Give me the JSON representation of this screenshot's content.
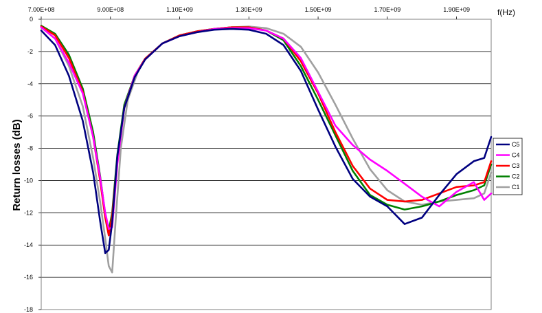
{
  "chart_data": {
    "type": "line",
    "title": "",
    "xlabel": "f(Hz)",
    "ylabel": "Return losses (dB)",
    "xlim": [
      700000000,
      2000000000
    ],
    "ylim": [
      -18,
      0
    ],
    "x_ticks": [
      700000000,
      900000000,
      1100000000,
      1300000000,
      1500000000,
      1700000000,
      1900000000
    ],
    "x_tick_labels": [
      "7.00E+08",
      "9.00E+08",
      "1.10E+09",
      "1.30E+09",
      "1.50E+09",
      "1.70E+09",
      "1.90E+09"
    ],
    "y_ticks": [
      0,
      -2,
      -4,
      -6,
      -8,
      -10,
      -12,
      -14,
      -16,
      -18
    ],
    "y_tick_labels": [
      "0",
      "-2",
      "-4",
      "-6",
      "-8",
      "-10",
      "-12",
      "-14",
      "-16",
      "-18"
    ],
    "x_axis_position": "top",
    "grid": "horizontal",
    "legend_position": "right",
    "series": [
      {
        "name": "C5",
        "color": "#000080",
        "points": [
          [
            700000000,
            -0.7
          ],
          [
            740000000,
            -1.6
          ],
          [
            780000000,
            -3.5
          ],
          [
            820000000,
            -6.3
          ],
          [
            850000000,
            -9.5
          ],
          [
            870000000,
            -12.5
          ],
          [
            885000000,
            -14.5
          ],
          [
            895000000,
            -14.3
          ],
          [
            905000000,
            -12.6
          ],
          [
            920000000,
            -8.5
          ],
          [
            940000000,
            -5.5
          ],
          [
            970000000,
            -3.6
          ],
          [
            1000000000,
            -2.5
          ],
          [
            1050000000,
            -1.5
          ],
          [
            1100000000,
            -1.05
          ],
          [
            1150000000,
            -0.8
          ],
          [
            1200000000,
            -0.65
          ],
          [
            1250000000,
            -0.6
          ],
          [
            1300000000,
            -0.65
          ],
          [
            1350000000,
            -0.9
          ],
          [
            1400000000,
            -1.6
          ],
          [
            1450000000,
            -3.2
          ],
          [
            1500000000,
            -5.6
          ],
          [
            1550000000,
            -7.9
          ],
          [
            1600000000,
            -9.9
          ],
          [
            1650000000,
            -11.0
          ],
          [
            1700000000,
            -11.6
          ],
          [
            1750000000,
            -12.7
          ],
          [
            1800000000,
            -12.3
          ],
          [
            1850000000,
            -10.9
          ],
          [
            1900000000,
            -9.6
          ],
          [
            1950000000,
            -8.8
          ],
          [
            1980000000,
            -8.6
          ],
          [
            2000000000,
            -7.3
          ]
        ]
      },
      {
        "name": "C4",
        "color": "#FF00FF",
        "points": [
          [
            700000000,
            -0.5
          ],
          [
            740000000,
            -1.2
          ],
          [
            780000000,
            -2.7
          ],
          [
            820000000,
            -4.6
          ],
          [
            850000000,
            -7.3
          ],
          [
            870000000,
            -9.8
          ],
          [
            885000000,
            -12.0
          ],
          [
            895000000,
            -13.0
          ],
          [
            905000000,
            -12.9
          ],
          [
            920000000,
            -9.0
          ],
          [
            940000000,
            -5.5
          ],
          [
            970000000,
            -3.5
          ],
          [
            1000000000,
            -2.5
          ],
          [
            1050000000,
            -1.5
          ],
          [
            1100000000,
            -1.05
          ],
          [
            1150000000,
            -0.8
          ],
          [
            1200000000,
            -0.6
          ],
          [
            1250000000,
            -0.55
          ],
          [
            1300000000,
            -0.55
          ],
          [
            1350000000,
            -0.7
          ],
          [
            1400000000,
            -1.2
          ],
          [
            1450000000,
            -2.4
          ],
          [
            1500000000,
            -4.5
          ],
          [
            1550000000,
            -6.6
          ],
          [
            1600000000,
            -7.8
          ],
          [
            1650000000,
            -8.7
          ],
          [
            1700000000,
            -9.4
          ],
          [
            1750000000,
            -10.2
          ],
          [
            1800000000,
            -11.0
          ],
          [
            1850000000,
            -11.6
          ],
          [
            1900000000,
            -10.7
          ],
          [
            1950000000,
            -10.1
          ],
          [
            1980000000,
            -11.2
          ],
          [
            2000000000,
            -10.8
          ]
        ]
      },
      {
        "name": "C3",
        "color": "#FF0000",
        "points": [
          [
            700000000,
            -0.45
          ],
          [
            740000000,
            -1.0
          ],
          [
            780000000,
            -2.4
          ],
          [
            820000000,
            -4.5
          ],
          [
            850000000,
            -7.3
          ],
          [
            870000000,
            -10.0
          ],
          [
            885000000,
            -12.3
          ],
          [
            895000000,
            -13.4
          ],
          [
            905000000,
            -12.2
          ],
          [
            920000000,
            -8.7
          ],
          [
            940000000,
            -5.5
          ],
          [
            970000000,
            -3.5
          ],
          [
            1000000000,
            -2.45
          ],
          [
            1050000000,
            -1.5
          ],
          [
            1100000000,
            -1.0
          ],
          [
            1150000000,
            -0.75
          ],
          [
            1200000000,
            -0.6
          ],
          [
            1250000000,
            -0.5
          ],
          [
            1300000000,
            -0.5
          ],
          [
            1350000000,
            -0.7
          ],
          [
            1400000000,
            -1.2
          ],
          [
            1450000000,
            -2.6
          ],
          [
            1500000000,
            -4.6
          ],
          [
            1550000000,
            -7.0
          ],
          [
            1600000000,
            -9.1
          ],
          [
            1650000000,
            -10.5
          ],
          [
            1700000000,
            -11.2
          ],
          [
            1750000000,
            -11.3
          ],
          [
            1800000000,
            -11.2
          ],
          [
            1850000000,
            -10.8
          ],
          [
            1900000000,
            -10.4
          ],
          [
            1950000000,
            -10.3
          ],
          [
            1980000000,
            -10.1
          ],
          [
            2000000000,
            -8.8
          ]
        ]
      },
      {
        "name": "C2",
        "color": "#008000",
        "points": [
          [
            700000000,
            -0.4
          ],
          [
            740000000,
            -0.9
          ],
          [
            780000000,
            -2.2
          ],
          [
            820000000,
            -4.3
          ],
          [
            850000000,
            -7.0
          ],
          [
            870000000,
            -9.7
          ],
          [
            885000000,
            -12.1
          ],
          [
            895000000,
            -13.1
          ],
          [
            905000000,
            -12.0
          ],
          [
            920000000,
            -8.4
          ],
          [
            940000000,
            -5.3
          ],
          [
            970000000,
            -3.5
          ],
          [
            1000000000,
            -2.45
          ],
          [
            1050000000,
            -1.5
          ],
          [
            1100000000,
            -1.0
          ],
          [
            1150000000,
            -0.75
          ],
          [
            1200000000,
            -0.6
          ],
          [
            1250000000,
            -0.5
          ],
          [
            1300000000,
            -0.5
          ],
          [
            1350000000,
            -0.7
          ],
          [
            1400000000,
            -1.3
          ],
          [
            1450000000,
            -2.9
          ],
          [
            1500000000,
            -5.0
          ],
          [
            1550000000,
            -7.2
          ],
          [
            1600000000,
            -9.4
          ],
          [
            1650000000,
            -10.9
          ],
          [
            1700000000,
            -11.5
          ],
          [
            1750000000,
            -11.8
          ],
          [
            1800000000,
            -11.6
          ],
          [
            1850000000,
            -11.3
          ],
          [
            1900000000,
            -10.9
          ],
          [
            1950000000,
            -10.6
          ],
          [
            1980000000,
            -10.3
          ],
          [
            2000000000,
            -9.0
          ]
        ]
      },
      {
        "name": "C1",
        "color": "#A0A0A0",
        "points": [
          [
            700000000,
            -0.5
          ],
          [
            740000000,
            -1.2
          ],
          [
            780000000,
            -2.9
          ],
          [
            820000000,
            -5.4
          ],
          [
            850000000,
            -8.6
          ],
          [
            870000000,
            -11.3
          ],
          [
            885000000,
            -13.6
          ],
          [
            895000000,
            -15.3
          ],
          [
            905000000,
            -15.7
          ],
          [
            915000000,
            -12.5
          ],
          [
            930000000,
            -8.0
          ],
          [
            950000000,
            -5.0
          ],
          [
            980000000,
            -3.2
          ],
          [
            1000000000,
            -2.5
          ],
          [
            1050000000,
            -1.5
          ],
          [
            1100000000,
            -1.0
          ],
          [
            1150000000,
            -0.75
          ],
          [
            1200000000,
            -0.6
          ],
          [
            1250000000,
            -0.5
          ],
          [
            1300000000,
            -0.45
          ],
          [
            1350000000,
            -0.55
          ],
          [
            1400000000,
            -0.9
          ],
          [
            1450000000,
            -1.7
          ],
          [
            1500000000,
            -3.3
          ],
          [
            1550000000,
            -5.3
          ],
          [
            1600000000,
            -7.4
          ],
          [
            1650000000,
            -9.3
          ],
          [
            1700000000,
            -10.6
          ],
          [
            1750000000,
            -11.3
          ],
          [
            1800000000,
            -11.5
          ],
          [
            1850000000,
            -11.3
          ],
          [
            1900000000,
            -11.2
          ],
          [
            1950000000,
            -11.1
          ],
          [
            1980000000,
            -10.8
          ],
          [
            2000000000,
            -9.5
          ]
        ]
      }
    ],
    "legend_order": [
      "C5",
      "C4",
      "C3",
      "C2",
      "C1"
    ]
  }
}
